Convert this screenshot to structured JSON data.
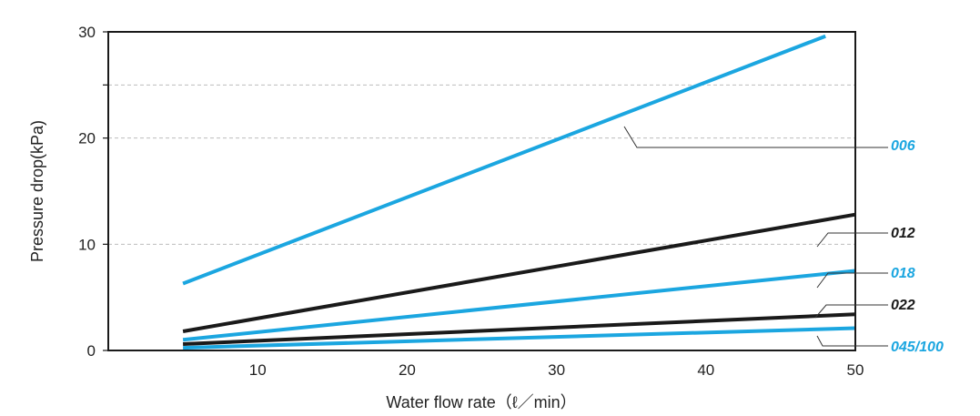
{
  "chart_data": {
    "type": "line",
    "title": "",
    "xlabel": "Water flow rate（ℓ／min）",
    "ylabel": "Pressure drop(kPa)",
    "xlim": [
      0,
      50
    ],
    "ylim": [
      0,
      30
    ],
    "x_ticks": [
      10,
      20,
      30,
      40,
      50
    ],
    "y_ticks": [
      0,
      10,
      20,
      30
    ],
    "y_minor_tick": 25,
    "grid": "horizontal dashed",
    "colors": {
      "blue": "#1ba6e0",
      "black": "#1a1a1a"
    },
    "series": [
      {
        "name": "006",
        "color": "#1ba6e0",
        "points": [
          [
            5,
            6.3
          ],
          [
            48,
            29.6
          ]
        ]
      },
      {
        "name": "012",
        "color": "#1a1a1a",
        "points": [
          [
            5,
            1.8
          ],
          [
            50,
            12.8
          ]
        ]
      },
      {
        "name": "018",
        "color": "#1ba6e0",
        "points": [
          [
            5,
            1.0
          ],
          [
            50,
            7.5
          ]
        ]
      },
      {
        "name": "022",
        "color": "#1a1a1a",
        "points": [
          [
            5,
            0.6
          ],
          [
            50,
            3.4
          ]
        ]
      },
      {
        "name": "045/100",
        "color": "#1ba6e0",
        "points": [
          [
            5,
            0.25
          ],
          [
            50,
            2.1
          ]
        ]
      }
    ]
  }
}
